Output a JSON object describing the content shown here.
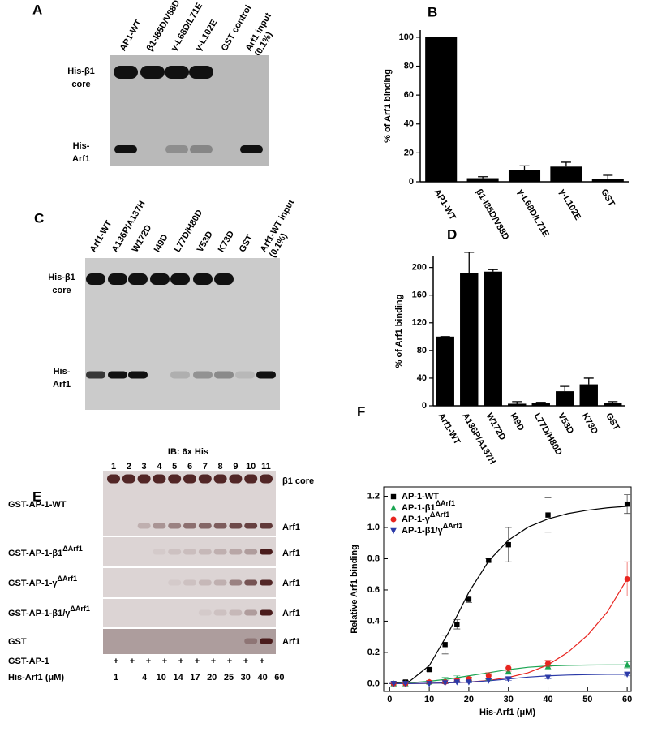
{
  "blots": [
    {
      "panel": "A",
      "lanes": [
        "AP1-WT",
        "β1-I85D/V88D",
        "γ-L68D/L71E",
        "γ-L102E",
        "GST control",
        [
          "Arf1 input",
          "(0.1%)"
        ]
      ],
      "lane_colors": [
        "#000000",
        "#34378f",
        "#c8772e",
        "#c8772e",
        "#000000",
        "#000000"
      ],
      "rows": [
        [
          "His-β1",
          "core"
        ],
        [
          "His-",
          "Arf1"
        ]
      ]
    },
    {
      "panel": "C",
      "lanes": [
        "Arf1-WT",
        "A136P/A137H",
        "W172D",
        "I49D",
        "L77D/H80D",
        "V53D",
        "K73D",
        "GST",
        [
          "Arf1-WT input",
          "(0.1%)"
        ]
      ],
      "lane_colors": [
        "#000000",
        "#e0245e",
        "#e0245e",
        "#000000",
        "#000000",
        "#000000",
        "#000000",
        "#000000",
        "#000000"
      ],
      "rows": [
        [
          "His-β1",
          "core"
        ],
        [
          "His-",
          "Arf1"
        ]
      ]
    },
    {
      "panel": "E",
      "title": "IB: 6x His",
      "lanes": [
        1,
        2,
        3,
        4,
        5,
        6,
        7,
        8,
        9,
        10,
        11
      ],
      "rows": [
        {
          "text": "GST-AP-1-WT"
        },
        {
          "text": "GST-AP-1-β1",
          "sup": "ΔArf1"
        },
        {
          "text": "GST-AP-1-γ",
          "sup": "ΔArf1"
        },
        {
          "text": "GST-AP-1-β1/γ",
          "sup": "ΔArf1"
        },
        {
          "text": "GST"
        }
      ],
      "band_labels": [
        "β1 core",
        "Arf1",
        "Arf1",
        "Arf1",
        "Arf1",
        "Arf1"
      ],
      "conditions": [
        {
          "label": "GST-AP-1",
          "marks": [
            "+",
            "+",
            "+",
            "+",
            "+",
            "+",
            "+",
            "+",
            "+",
            "+"
          ]
        },
        {
          "label": "His-Arf1 (μM)",
          "marks": [
            1,
            4,
            10,
            14,
            17,
            20,
            25,
            30,
            40,
            60
          ]
        }
      ]
    }
  ],
  "chart_data": [
    {
      "type": "bar",
      "panel": "B",
      "y_label": "% of Arf1 binding",
      "categories": [
        "AP1-WT",
        "β1-I85D/V88D",
        "γ-L68D/L71E",
        "γ-L102E",
        "GST"
      ],
      "category_colors": [
        "#000000",
        "#34378f",
        "#c8772e",
        "#c8772e",
        "#000000"
      ],
      "values": [
        100,
        2.5,
        8,
        10.5,
        2
      ],
      "errors": [
        0,
        1,
        3,
        3,
        2.5
      ],
      "color": "#000000",
      "ylim": [
        0,
        105
      ],
      "yticks": [
        0,
        20,
        40,
        60,
        80,
        100
      ]
    },
    {
      "type": "bar",
      "panel": "D",
      "y_label": "% of Arf1 binding",
      "categories": [
        "Arf1-WT",
        "A136P/A137H",
        "W172D",
        "I49D",
        "L77D/H80D",
        "V53D",
        "K73D",
        "GST"
      ],
      "category_colors": [
        "#000000",
        "#e0245e",
        "#e0245e",
        "#000000",
        "#000000",
        "#000000",
        "#000000",
        "#000000"
      ],
      "values": [
        100,
        192,
        194,
        3,
        4,
        21,
        31,
        4
      ],
      "errors": [
        0,
        30,
        3,
        3,
        1,
        7,
        9,
        2
      ],
      "color": "#000000",
      "ylim": [
        0,
        216
      ],
      "yticks": [
        0,
        40,
        80,
        120,
        160,
        200
      ]
    },
    {
      "type": "scatter",
      "panel": "F",
      "x_label": "His-Arf1 (μM)",
      "y_label": "Relative Arf1 binding",
      "x": [
        1,
        4,
        10,
        14,
        17,
        20,
        25,
        30,
        40,
        60
      ],
      "fit_x": [
        0,
        5,
        10,
        15,
        20,
        25,
        30,
        35,
        40,
        45,
        50,
        55,
        60
      ],
      "series": [
        {
          "name": "AP-1-WT",
          "color": "#000000",
          "marker": "square",
          "values": [
            0.0,
            0.01,
            0.09,
            0.25,
            0.38,
            0.54,
            0.79,
            0.89,
            1.08,
            1.15
          ],
          "errors": [
            0,
            0.01,
            0.01,
            0.06,
            0.03,
            0.02,
            0.01,
            0.11,
            0.11,
            0.06
          ],
          "fit": [
            0,
            0.014,
            0.115,
            0.333,
            0.585,
            0.785,
            0.919,
            1.003,
            1.055,
            1.089,
            1.111,
            1.126,
            1.136
          ]
        },
        {
          "name": "AP-1-β1",
          "name_sup": "ΔArf1",
          "color": "#1aa552",
          "marker": "triangle-up",
          "values": [
            0,
            0,
            0.01,
            0.02,
            0.03,
            0.03,
            0.04,
            0.08,
            0.11,
            0.12
          ],
          "errors": [
            0,
            0,
            0.01,
            0.02,
            0.02,
            0.01,
            0.02,
            0.02,
            0.02,
            0.02
          ],
          "fit": [
            0,
            0.005,
            0.015,
            0.03,
            0.05,
            0.07,
            0.09,
            0.105,
            0.113,
            0.117,
            0.119,
            0.12,
            0.12
          ]
        },
        {
          "name": "AP-1-γ",
          "name_sup": "ΔArf1",
          "color": "#e8241f",
          "marker": "circle",
          "values": [
            0,
            0,
            0.01,
            0.01,
            0.02,
            0.03,
            0.05,
            0.1,
            0.13,
            0.67
          ],
          "errors": [
            0,
            0,
            0.01,
            0.01,
            0.01,
            0.01,
            0.02,
            0.02,
            0.02,
            0.11
          ],
          "fit": [
            0,
            0,
            0.002,
            0.005,
            0.01,
            0.02,
            0.04,
            0.07,
            0.12,
            0.2,
            0.31,
            0.46,
            0.67
          ]
        },
        {
          "name": "AP-1-β1/γ",
          "name_sup": "ΔArf1",
          "color": "#2b3aa8",
          "marker": "triangle-down",
          "values": [
            0,
            0,
            0,
            0.005,
            0.01,
            0.01,
            0.02,
            0.03,
            0.04,
            0.06
          ],
          "errors": [
            0,
            0,
            0,
            0.005,
            0.005,
            0.005,
            0.01,
            0.01,
            0.01,
            0.01
          ],
          "fit": [
            0,
            0,
            0.002,
            0.005,
            0.01,
            0.018,
            0.03,
            0.042,
            0.05,
            0.055,
            0.058,
            0.06,
            0.06
          ]
        }
      ],
      "xlim": [
        -1.5,
        61
      ],
      "xticks": [
        0,
        10,
        20,
        30,
        40,
        50,
        60
      ],
      "ylim": [
        -0.05,
        1.26
      ],
      "yticks": [
        {
          "value": 0,
          "label": "0.0"
        },
        0.2,
        0.4,
        0.6,
        0.8,
        {
          "value": 1,
          "label": "1.0"
        },
        1.2
      ],
      "legend": "upper left"
    }
  ]
}
